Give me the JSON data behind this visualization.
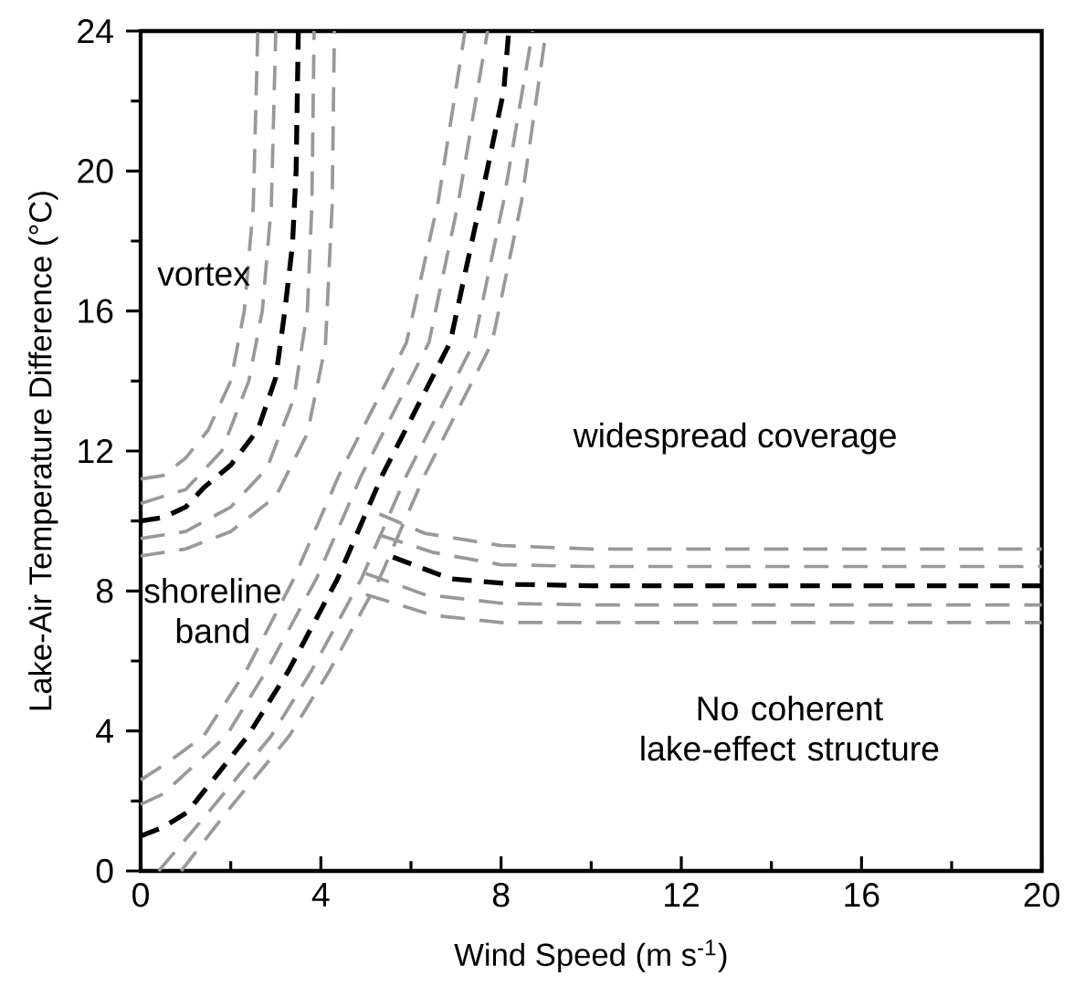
{
  "chart_data": {
    "type": "line",
    "xlabel": "Wind Speed (m s$^{-1}$)",
    "ylabel": "Lake-Air Temperature Difference (°C)",
    "xlim": [
      0,
      20
    ],
    "ylim": [
      0,
      24
    ],
    "xticks": [
      0,
      4,
      8,
      12,
      16,
      20
    ],
    "yticks": [
      0,
      4,
      8,
      12,
      16,
      20,
      24
    ],
    "grid": false,
    "marker": "none",
    "line_style": "dashed",
    "annotations": [
      "vortex",
      "widespread coverage",
      "shoreline band",
      "No coherent lake-effect structure"
    ],
    "series": [
      {
        "color": "#999999",
        "x": [
          0,
          0.5,
          1,
          1.5,
          2,
          2.3,
          2.5,
          2.6
        ],
        "values": [
          11.2,
          11.3,
          11.8,
          12.6,
          14,
          16,
          19,
          24
        ]
      },
      {
        "color": "#999999",
        "x": [
          0,
          1,
          1.8,
          2.4,
          2.7,
          2.9,
          3.0
        ],
        "values": [
          10.5,
          10.9,
          12,
          14,
          16,
          19,
          24
        ]
      },
      {
        "color": "#999999",
        "x": [
          0,
          1,
          2,
          2.8,
          3.4,
          3.7,
          3.8,
          3.85
        ],
        "values": [
          9.5,
          9.7,
          10.4,
          11.5,
          13.5,
          16,
          19,
          24
        ]
      },
      {
        "color": "#999999",
        "x": [
          0,
          1,
          2,
          3,
          3.7,
          4.1,
          4.25,
          4.3
        ],
        "values": [
          9.0,
          9.2,
          9.7,
          10.7,
          12.5,
          15,
          19,
          24
        ]
      },
      {
        "color": "#999999",
        "x": [
          0,
          0.6,
          1.4,
          2.35,
          3.4,
          4.4,
          5.9,
          6.6,
          7.2
        ],
        "values": [
          2.6,
          3.1,
          3.86,
          5.74,
          8.35,
          11.3,
          15.1,
          19.1,
          24
        ]
      },
      {
        "color": "#999999",
        "x": [
          0,
          0.5,
          1.9,
          2.8,
          3.9,
          4.9,
          6.4,
          7.05,
          7.7
        ],
        "values": [
          1.9,
          2.2,
          3.86,
          5.74,
          8.35,
          11.3,
          15.1,
          19.1,
          24
        ]
      },
      {
        "color": "#999999",
        "x": [
          0.4,
          1.5,
          2.9,
          3.8,
          4.9,
          5.9,
          7.4,
          8.05,
          8.7
        ],
        "values": [
          0,
          1.67,
          3.86,
          5.74,
          8.35,
          11.3,
          15.1,
          19.1,
          24
        ]
      },
      {
        "color": "#999999",
        "x": [
          0.9,
          1.9,
          3.3,
          4.2,
          5.3,
          6.3,
          7.8,
          8.45,
          9.0
        ],
        "values": [
          0,
          1.67,
          3.86,
          5.74,
          8.35,
          11.3,
          15.1,
          19.1,
          24
        ]
      },
      {
        "color": "#999999",
        "x": [
          5.3,
          6.3,
          8,
          10,
          20
        ],
        "values": [
          10.2,
          9.65,
          9.3,
          9.2,
          9.2
        ]
      },
      {
        "color": "#999999",
        "x": [
          5.3,
          6.5,
          8,
          10,
          20
        ],
        "values": [
          9.6,
          9.1,
          8.75,
          8.7,
          8.7
        ]
      },
      {
        "color": "#999999",
        "x": [
          5.0,
          6.3,
          8,
          10,
          20
        ],
        "values": [
          8.5,
          7.9,
          7.65,
          7.6,
          7.6
        ]
      },
      {
        "color": "#999999",
        "x": [
          5.0,
          6.5,
          8,
          10,
          20
        ],
        "values": [
          7.9,
          7.3,
          7.1,
          7.1,
          7.1
        ]
      },
      {
        "color": "#000000",
        "x": [
          0,
          0.5,
          1,
          1.4,
          2,
          2.6,
          3.0,
          3.2,
          3.37,
          3.45,
          3.5
        ],
        "values": [
          10,
          10.1,
          10.4,
          10.95,
          11.6,
          12.6,
          14.1,
          16,
          17.9,
          20,
          24
        ]
      },
      {
        "color": "#000000",
        "x": [
          0,
          0.5,
          1.03,
          2.38,
          3.29,
          4.37,
          5.36,
          6.87,
          7.54,
          8.06,
          8.17
        ],
        "values": [
          1.0,
          1.25,
          1.67,
          3.86,
          5.74,
          8.35,
          11.3,
          15.1,
          19.1,
          22.3,
          24
        ]
      },
      {
        "color": "#000000",
        "x": [
          5.6,
          6.87,
          8.33,
          10,
          20
        ],
        "values": [
          8.97,
          8.35,
          8.19,
          8.15,
          8.15
        ]
      }
    ]
  }
}
